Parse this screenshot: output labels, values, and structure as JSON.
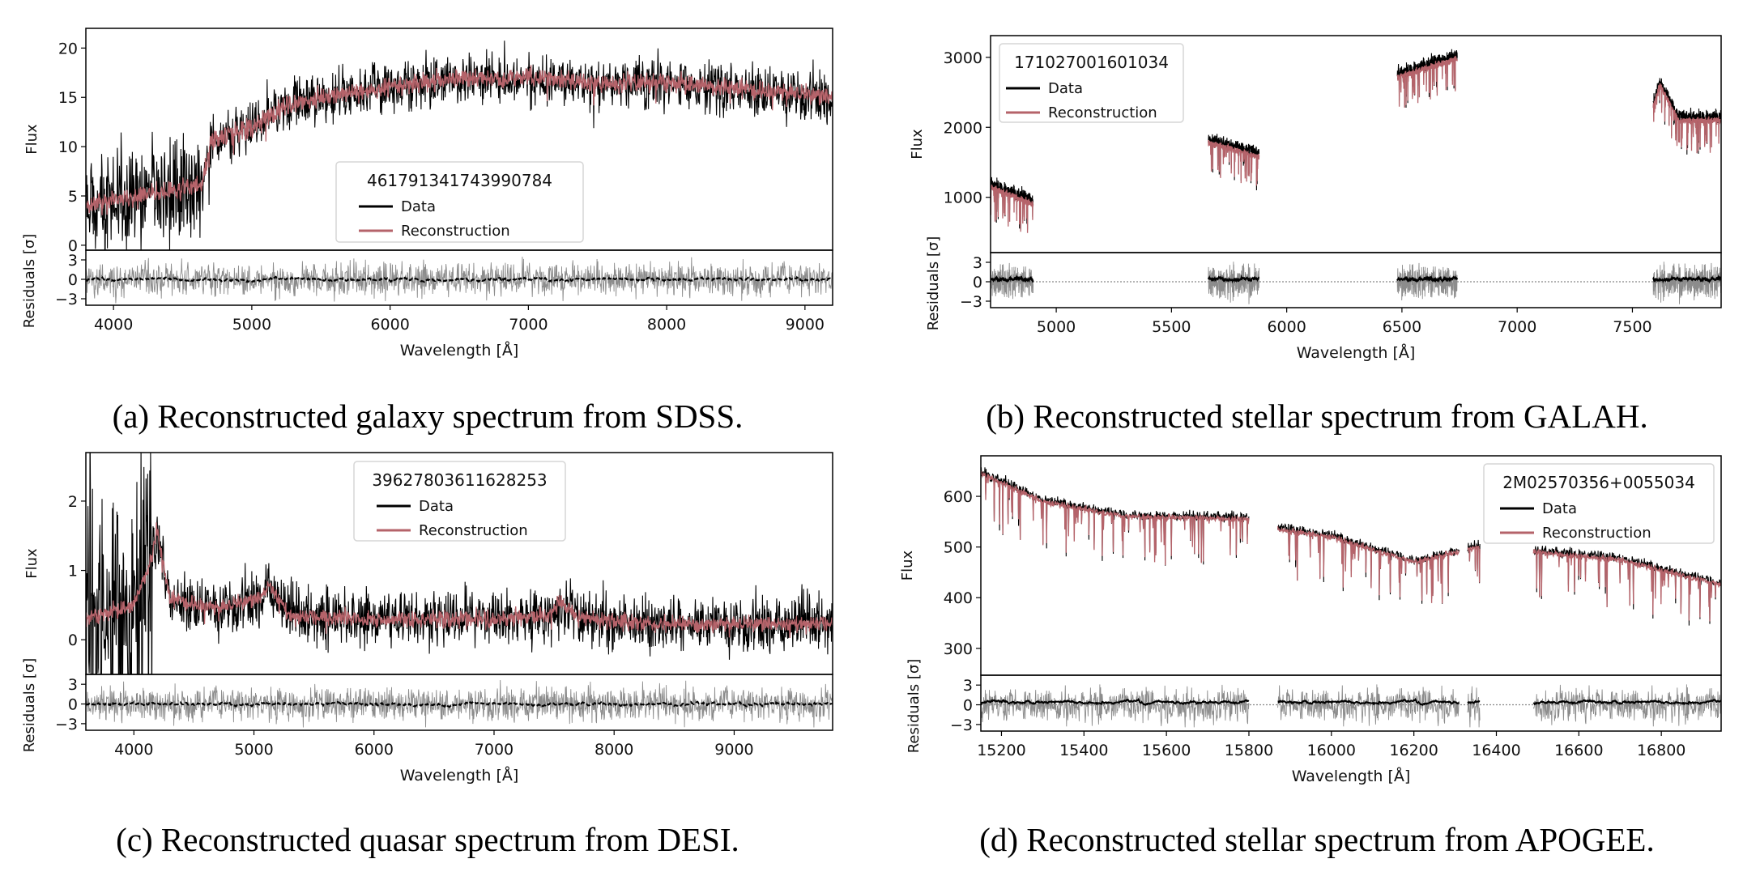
{
  "chart_data": [
    {
      "type": "line",
      "caption": "(a) Reconstructed galaxy spectrum from SDSS.",
      "legend_title": "461791341743990784",
      "legend_placement": "center",
      "series": [
        {
          "name": "Data",
          "color": "#000000"
        },
        {
          "name": "Reconstruction",
          "color": "#b5636a"
        }
      ],
      "xlabel": "Wavelength [Å]",
      "ylabel": "Flux",
      "residual_ylabel": "Residuals [σ]",
      "xlim": [
        3800,
        9200
      ],
      "ylim": [
        -0.5,
        22
      ],
      "xticks": [
        4000,
        5000,
        6000,
        7000,
        8000,
        9000
      ],
      "xtick_labels": [
        "4000",
        "5000",
        "6000",
        "7000",
        "8000",
        "9000"
      ],
      "yticks": [
        0,
        5,
        10,
        15,
        20
      ],
      "ytick_labels": [
        "0",
        "5",
        "10",
        "15",
        "20"
      ],
      "residual_ylim": [
        -4,
        4.5
      ],
      "residual_yticks": [
        -3,
        0,
        3
      ],
      "residual_ytick_labels": [
        "−3",
        "0",
        "3"
      ],
      "segments": [
        [
          3800,
          9200
        ]
      ],
      "continuum": {
        "x": [
          3800,
          4200,
          4600,
          4640,
          4700,
          5000,
          5300,
          6000,
          6500,
          7000,
          7500,
          8000,
          8500,
          9200
        ],
        "y": [
          4,
          5,
          6,
          6,
          10.5,
          12,
          14.5,
          16,
          17,
          17,
          16.5,
          16.5,
          16,
          15
        ]
      }
    },
    {
      "type": "line",
      "caption": "(b) Reconstructed stellar spectrum from GALAH.",
      "legend_title": "171027001601034",
      "legend_placement": "upper left",
      "series": [
        {
          "name": "Data",
          "color": "#000000"
        },
        {
          "name": "Reconstruction",
          "color": "#b5636a"
        }
      ],
      "xlabel": "Wavelength [Å]",
      "ylabel": "Flux",
      "residual_ylabel": "Residuals [σ]",
      "xlim": [
        4715,
        7885
      ],
      "ylim": [
        210,
        3310
      ],
      "xticks": [
        5000,
        5500,
        6000,
        6500,
        7000,
        7500
      ],
      "xtick_labels": [
        "5000",
        "5500",
        "6000",
        "6500",
        "7000",
        "7500"
      ],
      "yticks": [
        1000,
        2000,
        3000
      ],
      "ytick_labels": [
        "1000",
        "2000",
        "3000"
      ],
      "residual_ylim": [
        -4,
        4.5
      ],
      "residual_yticks": [
        -3,
        0,
        3
      ],
      "residual_ytick_labels": [
        "−3",
        "0",
        "3"
      ],
      "segments": [
        [
          4715,
          4900
        ],
        [
          5660,
          5880
        ],
        [
          6480,
          6740
        ],
        [
          7590,
          7885
        ]
      ],
      "continuum": {
        "x": [
          4715,
          4900,
          5660,
          5880,
          6480,
          6740,
          7590,
          7620,
          7700,
          7885
        ],
        "y": [
          1150,
          900,
          1780,
          1580,
          2720,
          2980,
          2300,
          2600,
          2100,
          2100
        ]
      }
    },
    {
      "type": "line",
      "caption": "(c) Reconstructed quasar spectrum from DESI.",
      "legend_title": "39627803611628253",
      "legend_placement": "upper center",
      "series": [
        {
          "name": "Data",
          "color": "#000000"
        },
        {
          "name": "Reconstruction",
          "color": "#b5636a"
        }
      ],
      "xlabel": "Wavelength [Å]",
      "ylabel": "Flux",
      "residual_ylabel": "Residuals [σ]",
      "xlim": [
        3600,
        9820
      ],
      "ylim": [
        -0.5,
        2.7
      ],
      "xticks": [
        4000,
        5000,
        6000,
        7000,
        8000,
        9000
      ],
      "xtick_labels": [
        "4000",
        "5000",
        "6000",
        "7000",
        "8000",
        "9000"
      ],
      "yticks": [
        0,
        1,
        2
      ],
      "ytick_labels": [
        "0",
        "1",
        "2"
      ],
      "residual_ylim": [
        -4,
        4.5
      ],
      "residual_yticks": [
        -3,
        0,
        3
      ],
      "residual_ytick_labels": [
        "−3",
        "0",
        "3"
      ],
      "segments": [
        [
          3600,
          9820
        ]
      ],
      "continuum": {
        "x": [
          3600,
          4000,
          4150,
          4190,
          4300,
          4700,
          5050,
          5130,
          5300,
          6000,
          7000,
          7450,
          7550,
          7700,
          8000,
          9000,
          9820
        ],
        "y": [
          0.3,
          0.5,
          1.2,
          1.6,
          0.6,
          0.45,
          0.6,
          0.8,
          0.35,
          0.3,
          0.3,
          0.35,
          0.55,
          0.32,
          0.25,
          0.22,
          0.25
        ]
      }
    },
    {
      "type": "line",
      "caption": "(d) Reconstructed stellar spectrum from APOGEE.",
      "legend_title": "2M02570356+0055034",
      "legend_placement": "upper right",
      "series": [
        {
          "name": "Data",
          "color": "#000000"
        },
        {
          "name": "Reconstruction",
          "color": "#b5636a"
        }
      ],
      "xlabel": "Wavelength [Å]",
      "ylabel": "Flux",
      "residual_ylabel": "Residuals [σ]",
      "xlim": [
        15150,
        16945
      ],
      "ylim": [
        247,
        680
      ],
      "xticks": [
        15200,
        15400,
        15600,
        15800,
        16000,
        16200,
        16400,
        16600,
        16800
      ],
      "xtick_labels": [
        "15200",
        "15400",
        "15600",
        "15800",
        "16000",
        "16200",
        "16400",
        "16600",
        "16800"
      ],
      "yticks": [
        300,
        400,
        500,
        600
      ],
      "ytick_labels": [
        "300",
        "400",
        "500",
        "600"
      ],
      "residual_ylim": [
        -4,
        4.5
      ],
      "residual_yticks": [
        -3,
        0,
        3
      ],
      "residual_ytick_labels": [
        "−3",
        "0",
        "3"
      ],
      "segments": [
        [
          15150,
          15800
        ],
        [
          15870,
          16310
        ],
        [
          16330,
          16360
        ],
        [
          16490,
          16945
        ]
      ],
      "continuum": {
        "x": [
          15150,
          15300,
          15500,
          15800,
          15870,
          16000,
          16200,
          16360,
          16490,
          16700,
          16945
        ],
        "y": [
          645,
          590,
          560,
          555,
          535,
          520,
          470,
          500,
          490,
          475,
          425
        ]
      }
    }
  ]
}
